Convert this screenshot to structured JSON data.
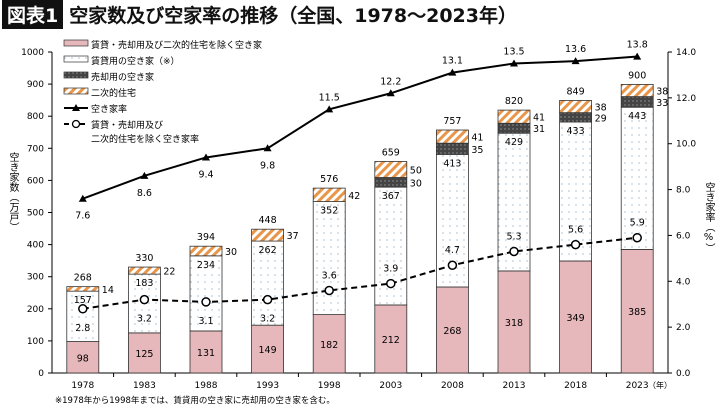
{
  "title": {
    "badge": "図表1",
    "text": "空家数及び空家率の推移（全国、1978～2023年）"
  },
  "footnote": "※1978年から1998年までは、賃貸用の空き家に売却用の空き家を含む。",
  "chart_data": {
    "type": "bar",
    "stacked": true,
    "categories": [
      "1978",
      "1983",
      "1988",
      "1993",
      "1998",
      "2003",
      "2008",
      "2013",
      "2018",
      "2023"
    ],
    "xlabel": "（年）",
    "ylabel": "空き家数（万戸）",
    "ylabel_right": "空き家率（%）",
    "ylim": [
      0,
      1000
    ],
    "yticks": [
      0,
      100,
      200,
      300,
      400,
      500,
      600,
      700,
      800,
      900,
      1000
    ],
    "ylim_right": [
      0,
      14
    ],
    "yticks_right": [
      "0.0",
      "2.0",
      "4.0",
      "6.0",
      "8.0",
      "10.0",
      "12.0",
      "14.0"
    ],
    "legend_position": "top-left",
    "grid": false,
    "series": [
      {
        "name": "賃貸・売却用及び二次的住宅を除く空き家",
        "color": "#e7b8bb",
        "values": [
          98,
          125,
          131,
          149,
          182,
          212,
          268,
          318,
          349,
          385
        ]
      },
      {
        "name": "賃貸用の空き家（※）",
        "color": "#ffffff",
        "pattern": "dots",
        "values": [
          157,
          183,
          234,
          262,
          352,
          367,
          413,
          429,
          433,
          443
        ]
      },
      {
        "name": "売却用の空き家",
        "color": "#444444",
        "pattern": "dots",
        "values": [
          null,
          null,
          null,
          null,
          null,
          30,
          35,
          31,
          29,
          33
        ]
      },
      {
        "name": "二次的住宅",
        "color": "#e8964a",
        "pattern": "hatch",
        "values": [
          14,
          22,
          30,
          37,
          42,
          50,
          41,
          41,
          38,
          38
        ]
      }
    ],
    "totals": [
      268,
      330,
      394,
      448,
      576,
      659,
      757,
      820,
      849,
      900
    ],
    "lines": [
      {
        "name": "空き家率",
        "axis": "right",
        "style": "solid-triangle",
        "values": [
          7.6,
          8.6,
          9.4,
          9.8,
          11.5,
          12.2,
          13.1,
          13.5,
          13.6,
          13.8
        ],
        "labels": [
          "7.6",
          "8.6",
          "9.4",
          "9.8",
          "11.5",
          "12.2",
          "13.1",
          "13.5",
          "13.6",
          "13.8"
        ]
      },
      {
        "name": "賃貸・売却用及び二次的住宅を除く空き家率",
        "legend_lines": [
          "賃貸・売却用及び",
          "二次的住宅を除く空き家率"
        ],
        "axis": "right",
        "style": "dashed-circle",
        "values": [
          2.8,
          3.2,
          3.1,
          3.2,
          3.6,
          3.9,
          4.7,
          5.3,
          5.6,
          5.9
        ],
        "labels": [
          "2.8",
          "3.2",
          "3.1",
          "3.2",
          "3.6",
          "3.9",
          "4.7",
          "5.3",
          "5.6",
          "5.9"
        ]
      }
    ]
  }
}
